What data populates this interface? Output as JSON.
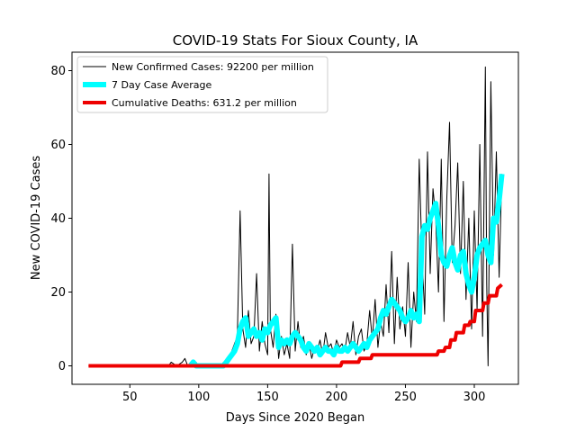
{
  "chart_data": {
    "type": "line",
    "title": "COVID-19 Stats For Sioux County, IA",
    "xlabel": "Days Since 2020 Began",
    "ylabel": "New COVID-19 Cases",
    "xlim": [
      8,
      332
    ],
    "ylim": [
      -5,
      85
    ],
    "xticks": [
      50,
      100,
      150,
      200,
      250,
      300
    ],
    "yticks": [
      0,
      20,
      40,
      60,
      80
    ],
    "grid": false,
    "legend_position": "top-left",
    "series": [
      {
        "name": "New Confirmed Cases: 92200 per million",
        "color": "#000000",
        "stroke_width": 1,
        "x": [
          20,
          40,
          60,
          78,
          80,
          84,
          88,
          90,
          92,
          94,
          96,
          98,
          100,
          104,
          108,
          112,
          116,
          118,
          120,
          122,
          124,
          126,
          128,
          130,
          132,
          134,
          136,
          138,
          140,
          142,
          144,
          146,
          148,
          150,
          151,
          152,
          154,
          156,
          158,
          160,
          162,
          164,
          166,
          168,
          170,
          172,
          174,
          176,
          178,
          180,
          182,
          184,
          186,
          188,
          190,
          192,
          194,
          196,
          198,
          200,
          202,
          204,
          206,
          208,
          210,
          212,
          214,
          216,
          218,
          220,
          222,
          224,
          226,
          228,
          230,
          232,
          234,
          236,
          238,
          240,
          242,
          244,
          246,
          248,
          250,
          252,
          254,
          256,
          258,
          260,
          262,
          264,
          266,
          268,
          270,
          272,
          274,
          276,
          278,
          280,
          282,
          284,
          286,
          288,
          290,
          292,
          294,
          296,
          298,
          300,
          302,
          304,
          306,
          308,
          309,
          310,
          312,
          314,
          316,
          318,
          320
        ],
        "y": [
          0,
          0,
          0,
          0,
          1,
          0,
          1,
          2,
          0,
          1,
          0,
          1,
          0,
          0,
          0,
          0,
          0,
          1,
          0,
          2,
          4,
          6,
          8,
          42,
          10,
          5,
          15,
          6,
          8,
          25,
          4,
          12,
          6,
          3,
          52,
          10,
          5,
          14,
          2,
          8,
          3,
          6,
          2,
          33,
          4,
          12,
          5,
          8,
          3,
          6,
          2,
          5,
          4,
          7,
          3,
          9,
          5,
          6,
          3,
          7,
          5,
          6,
          4,
          9,
          5,
          12,
          3,
          8,
          10,
          4,
          6,
          15,
          7,
          18,
          5,
          12,
          8,
          22,
          9,
          31,
          6,
          24,
          10,
          16,
          8,
          28,
          5,
          20,
          12,
          56,
          30,
          14,
          58,
          25,
          48,
          40,
          20,
          56,
          12,
          45,
          66,
          28,
          38,
          55,
          25,
          50,
          18,
          40,
          10,
          42,
          15,
          60,
          8,
          81,
          22,
          0,
          77,
          30,
          58,
          24,
          52
        ]
      },
      {
        "name": "7 Day Case Average",
        "color": "#00ffff",
        "stroke_width": 6,
        "x": [
          94,
          96,
          98,
          100,
          110,
          118,
          120,
          122,
          124,
          126,
          128,
          130,
          132,
          134,
          136,
          138,
          140,
          142,
          144,
          146,
          148,
          150,
          152,
          154,
          156,
          158,
          160,
          162,
          164,
          166,
          168,
          170,
          172,
          174,
          176,
          178,
          180,
          182,
          184,
          186,
          188,
          190,
          192,
          194,
          196,
          198,
          200,
          202,
          204,
          206,
          208,
          210,
          212,
          214,
          216,
          218,
          220,
          222,
          224,
          226,
          228,
          230,
          232,
          234,
          236,
          238,
          240,
          242,
          244,
          246,
          248,
          250,
          252,
          254,
          256,
          258,
          260,
          262,
          264,
          266,
          268,
          270,
          272,
          274,
          276,
          278,
          280,
          282,
          284,
          286,
          288,
          290,
          292,
          294,
          296,
          298,
          300,
          302,
          304,
          306,
          308,
          310,
          312,
          314,
          316,
          318,
          320
        ],
        "y": [
          0,
          1,
          0,
          0,
          0,
          0,
          1,
          2,
          3,
          4,
          6,
          10,
          12,
          13,
          8,
          9,
          10,
          8,
          9,
          7,
          10,
          9,
          11,
          12,
          13,
          5,
          7,
          6,
          7,
          6,
          8,
          9,
          8,
          7,
          5,
          4,
          6,
          5,
          4,
          5,
          3,
          4,
          5,
          4,
          4,
          3,
          5,
          4,
          4,
          5,
          4,
          5,
          6,
          5,
          4,
          5,
          6,
          5,
          7,
          8,
          9,
          10,
          13,
          15,
          14,
          16,
          18,
          17,
          16,
          15,
          13,
          12,
          13,
          15,
          13,
          14,
          12,
          35,
          38,
          37,
          40,
          42,
          44,
          38,
          30,
          28,
          27,
          30,
          32,
          28,
          26,
          30,
          31,
          25,
          22,
          20,
          24,
          30,
          32,
          33,
          34,
          30,
          28,
          40,
          39,
          45,
          52
        ]
      },
      {
        "name": "Cumulative Deaths: 631.2 per million",
        "color": "#ee0000",
        "stroke_width": 4,
        "x": [
          20,
          203,
          204,
          210,
          211,
          216,
          217,
          220,
          221,
          225,
          226,
          272,
          273,
          274,
          278,
          279,
          282,
          283,
          286,
          287,
          292,
          293,
          296,
          297,
          300,
          301,
          306,
          307,
          310,
          311,
          316,
          317,
          320
        ],
        "y": [
          0,
          0,
          1,
          1,
          1,
          1,
          2,
          2,
          2,
          2,
          3,
          3,
          3,
          4,
          4,
          5,
          5,
          7,
          7,
          9,
          9,
          11,
          11,
          12,
          12,
          15,
          15,
          17,
          17,
          19,
          19,
          21,
          22
        ]
      }
    ]
  }
}
